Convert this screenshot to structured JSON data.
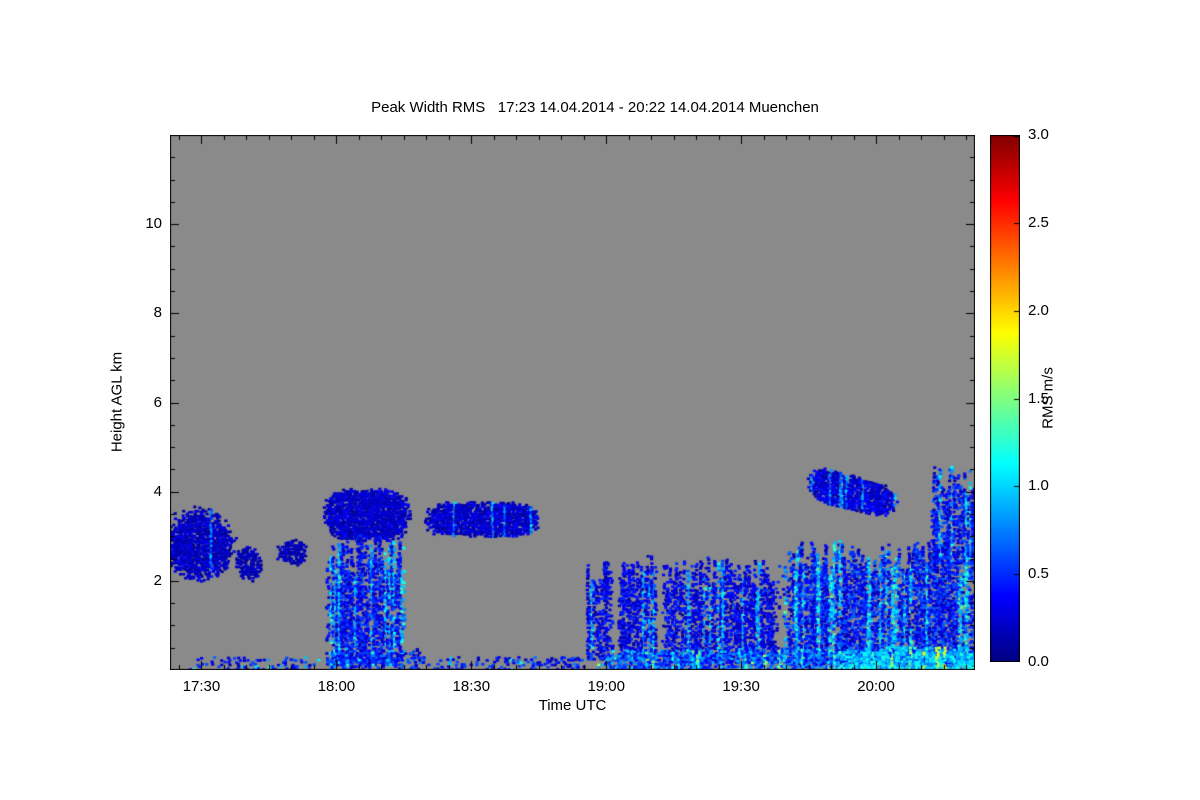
{
  "chart_data": {
    "type": "heatmap",
    "title": "Peak Width RMS   17:23 14.04.2014 - 20:22 14.04.2014 Muenchen",
    "xlabel": "Time UTC",
    "ylabel": "Height AGL km",
    "x_range_min": [
      1043,
      1222
    ],
    "x_tick_minor_step_min": 5,
    "x_ticks": [
      {
        "min": 1050,
        "label": "17:30"
      },
      {
        "min": 1080,
        "label": "18:00"
      },
      {
        "min": 1110,
        "label": "18:30"
      },
      {
        "min": 1140,
        "label": "19:00"
      },
      {
        "min": 1170,
        "label": "19:30"
      },
      {
        "min": 1200,
        "label": "20:00"
      }
    ],
    "ylim": [
      0,
      12
    ],
    "y_tick_minor_step_km": 0.5,
    "y_ticks": [
      {
        "value": 2,
        "label": "2"
      },
      {
        "value": 4,
        "label": "4"
      },
      {
        "value": 6,
        "label": "6"
      },
      {
        "value": 8,
        "label": "8"
      },
      {
        "value": 10,
        "label": "10"
      }
    ],
    "background_color": "#8a8a8a",
    "frame_color": "#000000",
    "legend_position": "right",
    "grid": false,
    "colorbar": {
      "label": "RMS m/s",
      "range": [
        0,
        3
      ],
      "colormap": "jet",
      "ticks": [
        {
          "value": 0,
          "label": "0.0"
        },
        {
          "value": 0.5,
          "label": "0.5"
        },
        {
          "value": 1,
          "label": "1.0"
        },
        {
          "value": 1.5,
          "label": "1.5"
        },
        {
          "value": 2,
          "label": "2.0"
        },
        {
          "value": 2.5,
          "label": "2.5"
        },
        {
          "value": 3,
          "label": "3.0"
        }
      ]
    },
    "regions": [
      {
        "name": "left-cloud-1723",
        "shape": "ellipse",
        "t0": 1041,
        "t1": 1058,
        "h0": 1.95,
        "h1": 3.7,
        "density": 0.9,
        "v": 0.16,
        "vjit": 0.28,
        "streak": 0.3
      },
      {
        "name": "small-cloud-1738",
        "shape": "ellipse",
        "t0": 1057,
        "t1": 1064,
        "h0": 1.95,
        "h1": 2.8,
        "density": 0.75,
        "v": 0.14,
        "vjit": 0.2,
        "streak": 0.1
      },
      {
        "name": "small-cloud-1748",
        "shape": "ellipse",
        "t0": 1066.5,
        "t1": 1074,
        "h0": 2.3,
        "h1": 2.95,
        "density": 0.8,
        "v": 0.14,
        "vjit": 0.2,
        "streak": 0.1
      },
      {
        "name": "plume-1800-cap",
        "shape": "band",
        "t0": 1077,
        "t1": 1096.5,
        "h0": 2.85,
        "h1": 4.1,
        "density": 0.95,
        "v": 0.17,
        "vjit": 0.3,
        "streak": 0.25
      },
      {
        "name": "plume-1800-column",
        "shape": "plume",
        "t0": 1077.5,
        "t1": 1095.5,
        "h0": 0.12,
        "h1": 3.1,
        "density": 0.85,
        "v": 0.3,
        "vjit": 0.5,
        "streak": 0.75
      },
      {
        "name": "band-1830",
        "shape": "band",
        "t0": 1099.5,
        "t1": 1125.5,
        "h0": 2.95,
        "h1": 3.8,
        "density": 0.92,
        "v": 0.18,
        "vjit": 0.3,
        "streak": 0.3
      },
      {
        "name": "ground-early",
        "shape": "plume",
        "t0": 1047,
        "t1": 1077,
        "h0": 0.02,
        "h1": 0.3,
        "density": 0.3,
        "v": 0.3,
        "vjit": 0.5,
        "streak": 0.4
      },
      {
        "name": "ground-mid",
        "shape": "plume",
        "t0": 1077,
        "t1": 1100,
        "h0": 0.02,
        "h1": 0.5,
        "density": 0.55,
        "v": 0.35,
        "vjit": 0.6,
        "streak": 0.5
      },
      {
        "name": "ground-mid2",
        "shape": "plume",
        "t0": 1100,
        "t1": 1136,
        "h0": 0.02,
        "h1": 0.32,
        "density": 0.38,
        "v": 0.3,
        "vjit": 0.5,
        "streak": 0.4
      },
      {
        "name": "plume-1856",
        "shape": "plume",
        "t0": 1135.5,
        "t1": 1141.5,
        "h0": 0.25,
        "h1": 2.5,
        "density": 0.8,
        "v": 0.25,
        "vjit": 0.4,
        "streak": 0.7
      },
      {
        "name": "plume-1903",
        "shape": "plume",
        "t0": 1142.5,
        "t1": 1151.5,
        "h0": 0.25,
        "h1": 2.65,
        "density": 0.82,
        "v": 0.25,
        "vjit": 0.4,
        "streak": 0.7
      },
      {
        "name": "low-cloud-1915",
        "shape": "plume",
        "t0": 1152,
        "t1": 1179,
        "h0": 0.18,
        "h1": 2.55,
        "density": 0.8,
        "v": 0.25,
        "vjit": 0.45,
        "streak": 0.55
      },
      {
        "name": "low-cloud-1940",
        "shape": "plume",
        "t0": 1179,
        "t1": 1223,
        "h0": 0.15,
        "h1": 2.95,
        "density": 0.88,
        "v": 0.32,
        "vjit": 0.6,
        "streak": 0.65
      },
      {
        "name": "ground-late",
        "shape": "plume",
        "t0": 1136,
        "t1": 1223,
        "h0": 0.02,
        "h1": 0.5,
        "density": 0.85,
        "v": 0.5,
        "vjit": 0.7,
        "streak": 0.6
      },
      {
        "name": "ground-cyan-2000",
        "shape": "plume",
        "t0": 1191,
        "t1": 1223,
        "h0": 0.04,
        "h1": 0.55,
        "density": 0.8,
        "v": 0.95,
        "vjit": 0.5,
        "streak": 0.4
      },
      {
        "name": "lens-cloud-1950",
        "shape": "band",
        "t0": 1184.5,
        "t1": 1205,
        "h0": 3.55,
        "h1": 4.4,
        "density": 0.9,
        "v": 0.2,
        "vjit": 0.35,
        "streak": 0.35,
        "tilt": -0.25
      },
      {
        "name": "right-tall-2015",
        "shape": "plume",
        "t0": 1212,
        "t1": 1222.5,
        "h0": 2.4,
        "h1": 4.65,
        "density": 0.85,
        "v": 0.3,
        "vjit": 0.5,
        "streak": 0.6
      }
    ]
  }
}
